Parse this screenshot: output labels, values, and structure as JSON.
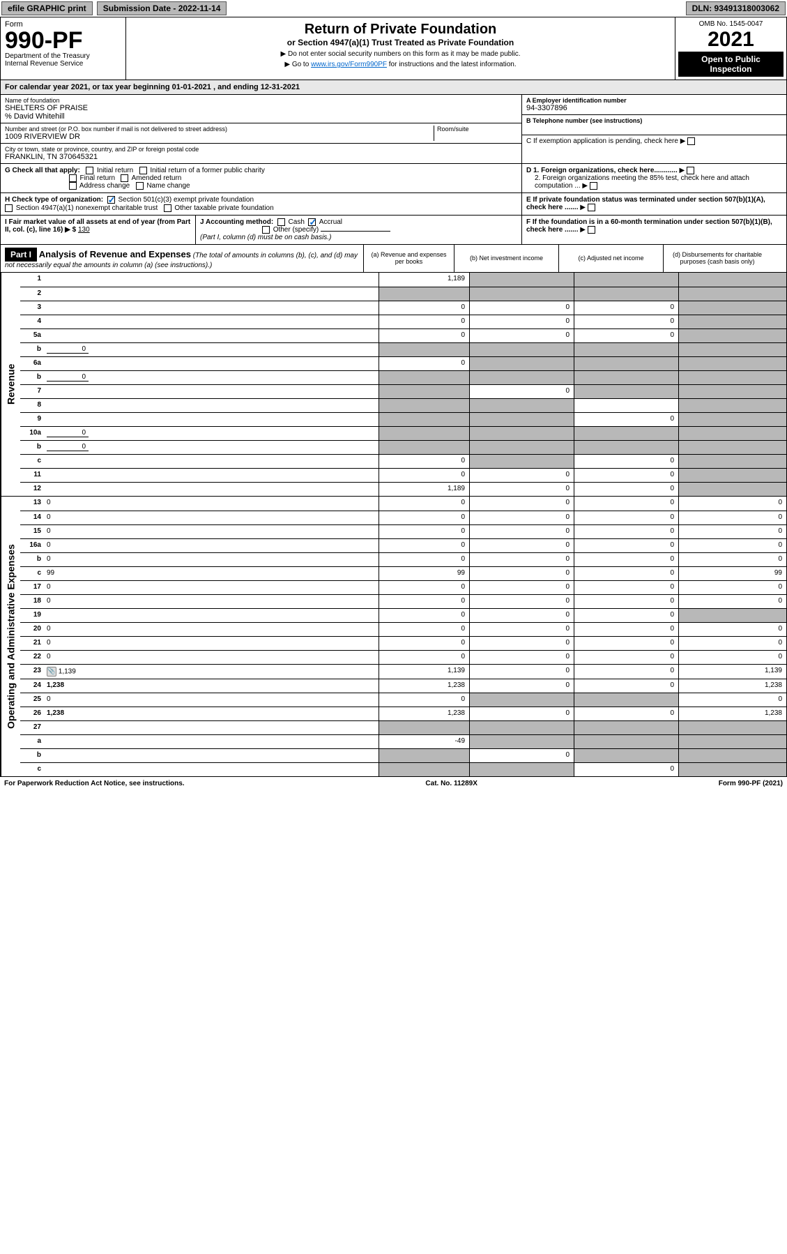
{
  "top": {
    "efile": "efile GRAPHIC print",
    "submission": "Submission Date - 2022-11-14",
    "dln": "DLN: 93491318003062"
  },
  "header": {
    "form_label": "Form",
    "form_number": "990-PF",
    "dept": "Department of the Treasury",
    "irs": "Internal Revenue Service",
    "title": "Return of Private Foundation",
    "subtitle": "or Section 4947(a)(1) Trust Treated as Private Foundation",
    "note1": "▶ Do not enter social security numbers on this form as it may be made public.",
    "note2_pre": "▶ Go to ",
    "note2_link": "www.irs.gov/Form990PF",
    "note2_post": " for instructions and the latest information.",
    "omb": "OMB No. 1545-0047",
    "year": "2021",
    "open": "Open to Public Inspection"
  },
  "calendar": "For calendar year 2021, or tax year beginning 01-01-2021          , and ending 12-31-2021",
  "entity": {
    "name_label": "Name of foundation",
    "name": "SHELTERS OF PRAISE",
    "care_of": "% David Whitehill",
    "addr_label": "Number and street (or P.O. box number if mail is not delivered to street address)",
    "addr": "1009 RIVERVIEW DR",
    "room_label": "Room/suite",
    "city_label": "City or town, state or province, country, and ZIP or foreign postal code",
    "city": "FRANKLIN, TN  370645321",
    "a_label": "A Employer identification number",
    "ein": "94-3307896",
    "b_label": "B Telephone number (see instructions)",
    "c_label": "C If exemption application is pending, check here",
    "d1": "D 1. Foreign organizations, check here............",
    "d2": "2. Foreign organizations meeting the 85% test, check here and attach computation ...",
    "e": "E  If private foundation status was terminated under section 507(b)(1)(A), check here .......",
    "f": "F  If the foundation is in a 60-month termination under section 507(b)(1)(B), check here .......",
    "g_label": "G Check all that apply:",
    "g_initial": "Initial return",
    "g_initial_former": "Initial return of a former public charity",
    "g_final": "Final return",
    "g_amended": "Amended return",
    "g_address": "Address change",
    "g_name": "Name change",
    "h_label": "H Check type of organization:",
    "h_501c3": "Section 501(c)(3) exempt private foundation",
    "h_4947": "Section 4947(a)(1) nonexempt charitable trust",
    "h_other": "Other taxable private foundation",
    "i_label": "I Fair market value of all assets at end of year (from Part II, col. (c), line 16) ▶ $",
    "i_value": "130",
    "j_label": "J Accounting method:",
    "j_cash": "Cash",
    "j_accrual": "Accrual",
    "j_other": "Other (specify)",
    "j_note": "(Part I, column (d) must be on cash basis.)"
  },
  "part1": {
    "label": "Part I",
    "title": "Analysis of Revenue and Expenses",
    "title_note": "(The total of amounts in columns (b), (c), and (d) may not necessarily equal the amounts in column (a) (see instructions).)",
    "col_a": "(a) Revenue and expenses per books",
    "col_b": "(b) Net investment income",
    "col_c": "(c) Adjusted net income",
    "col_d": "(d) Disbursements for charitable purposes (cash basis only)"
  },
  "sections": {
    "revenue": "Revenue",
    "expenses": "Operating and Administrative Expenses"
  },
  "rows": [
    {
      "n": "1",
      "d": "",
      "a": "1,189",
      "b": "",
      "c": "",
      "db": true,
      "dc": true,
      "dd": true
    },
    {
      "n": "2",
      "d": "",
      "a": "",
      "b": "",
      "c": "",
      "da": true,
      "db": true,
      "dc": true,
      "dd": true,
      "cb": true
    },
    {
      "n": "3",
      "d": "",
      "a": "0",
      "b": "0",
      "c": "0",
      "dd": true
    },
    {
      "n": "4",
      "d": "",
      "a": "0",
      "b": "0",
      "c": "0",
      "dd": true
    },
    {
      "n": "5a",
      "d": "",
      "a": "0",
      "b": "0",
      "c": "0",
      "dd": true
    },
    {
      "n": "b",
      "d": "",
      "a": "",
      "b": "",
      "c": "",
      "inline": "0",
      "da": true,
      "db": true,
      "dc": true,
      "dd": true
    },
    {
      "n": "6a",
      "d": "",
      "a": "0",
      "b": "",
      "c": "",
      "db": true,
      "dc": true,
      "dd": true
    },
    {
      "n": "b",
      "d": "",
      "a": "",
      "b": "",
      "c": "",
      "inline": "0",
      "da": true,
      "db": true,
      "dc": true,
      "dd": true
    },
    {
      "n": "7",
      "d": "",
      "a": "",
      "b": "0",
      "c": "",
      "da": true,
      "dc": true,
      "dd": true
    },
    {
      "n": "8",
      "d": "",
      "a": "",
      "b": "",
      "c": "",
      "da": true,
      "db": true,
      "dd": true
    },
    {
      "n": "9",
      "d": "",
      "a": "",
      "b": "",
      "c": "0",
      "da": true,
      "db": true,
      "dd": true
    },
    {
      "n": "10a",
      "d": "",
      "a": "",
      "b": "",
      "c": "",
      "inline": "0",
      "da": true,
      "db": true,
      "dc": true,
      "dd": true
    },
    {
      "n": "b",
      "d": "",
      "a": "",
      "b": "",
      "c": "",
      "inline": "0",
      "da": true,
      "db": true,
      "dc": true,
      "dd": true
    },
    {
      "n": "c",
      "d": "",
      "a": "0",
      "b": "",
      "c": "0",
      "db": true,
      "dd": true
    },
    {
      "n": "11",
      "d": "",
      "a": "0",
      "b": "0",
      "c": "0",
      "dd": true
    },
    {
      "n": "12",
      "d": "",
      "a": "1,189",
      "b": "0",
      "c": "0",
      "dd": true,
      "bold": true
    }
  ],
  "exp_rows": [
    {
      "n": "13",
      "d": "0",
      "a": "0",
      "b": "0",
      "c": "0"
    },
    {
      "n": "14",
      "d": "0",
      "a": "0",
      "b": "0",
      "c": "0"
    },
    {
      "n": "15",
      "d": "0",
      "a": "0",
      "b": "0",
      "c": "0"
    },
    {
      "n": "16a",
      "d": "0",
      "a": "0",
      "b": "0",
      "c": "0"
    },
    {
      "n": "b",
      "d": "0",
      "a": "0",
      "b": "0",
      "c": "0"
    },
    {
      "n": "c",
      "d": "99",
      "a": "99",
      "b": "0",
      "c": "0"
    },
    {
      "n": "17",
      "d": "0",
      "a": "0",
      "b": "0",
      "c": "0"
    },
    {
      "n": "18",
      "d": "0",
      "a": "0",
      "b": "0",
      "c": "0"
    },
    {
      "n": "19",
      "d": "",
      "a": "0",
      "b": "0",
      "c": "0",
      "dd": true
    },
    {
      "n": "20",
      "d": "0",
      "a": "0",
      "b": "0",
      "c": "0"
    },
    {
      "n": "21",
      "d": "0",
      "a": "0",
      "b": "0",
      "c": "0"
    },
    {
      "n": "22",
      "d": "0",
      "a": "0",
      "b": "0",
      "c": "0"
    },
    {
      "n": "23",
      "d": "1,139",
      "a": "1,139",
      "b": "0",
      "c": "0",
      "attach": true
    },
    {
      "n": "24",
      "d": "1,238",
      "a": "1,238",
      "b": "0",
      "c": "0",
      "bold": true
    },
    {
      "n": "25",
      "d": "0",
      "a": "0",
      "b": "",
      "c": "",
      "db": true,
      "dc": true
    },
    {
      "n": "26",
      "d": "1,238",
      "a": "1,238",
      "b": "0",
      "c": "0",
      "bold": true
    },
    {
      "n": "27",
      "d": "",
      "a": "",
      "b": "",
      "c": "",
      "da": true,
      "db": true,
      "dc": true,
      "dd": true
    },
    {
      "n": "a",
      "d": "",
      "a": "-49",
      "b": "",
      "c": "",
      "db": true,
      "dc": true,
      "dd": true,
      "bold": true
    },
    {
      "n": "b",
      "d": "",
      "a": "",
      "b": "0",
      "c": "",
      "da": true,
      "dc": true,
      "dd": true,
      "bold": true
    },
    {
      "n": "c",
      "d": "",
      "a": "",
      "b": "",
      "c": "0",
      "da": true,
      "db": true,
      "dd": true,
      "bold": true
    }
  ],
  "footer": {
    "left": "For Paperwork Reduction Act Notice, see instructions.",
    "center": "Cat. No. 11289X",
    "right": "Form 990-PF (2021)"
  }
}
